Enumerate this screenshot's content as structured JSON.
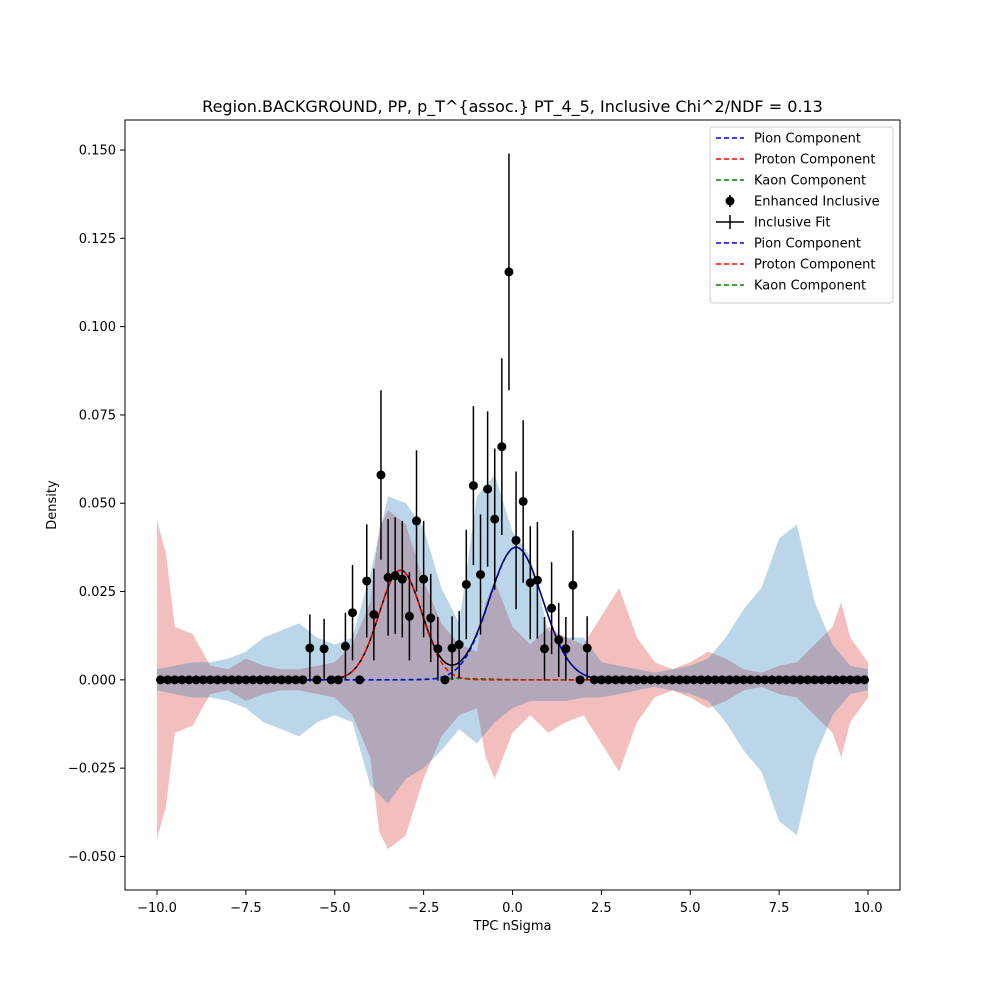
{
  "chart_data": {
    "type": "scatter",
    "title": "Region.BACKGROUND, PP, p_T^{assoc.} PT_4_5, Inclusive Chi^2/NDF = 0.13",
    "xlabel": "TPC nSigma",
    "ylabel": "Density",
    "xlim": [
      -10.9,
      10.9
    ],
    "ylim": [
      -0.0595,
      0.1585
    ],
    "xticks": [
      -10.0,
      -7.5,
      -5.0,
      -2.5,
      0.0,
      2.5,
      5.0,
      7.5,
      10.0
    ],
    "xtick_labels": [
      "−10.0",
      "−7.5",
      "−5.0",
      "−2.5",
      "0.0",
      "2.5",
      "5.0",
      "7.5",
      "10.0"
    ],
    "yticks": [
      -0.05,
      -0.025,
      0.0,
      0.025,
      0.05,
      0.075,
      0.1,
      0.125,
      0.15
    ],
    "ytick_labels": [
      "−0.050",
      "−0.025",
      "0.000",
      "0.025",
      "0.050",
      "0.075",
      "0.100",
      "0.125",
      "0.150"
    ],
    "grid": false,
    "legend_position": "top-right",
    "legend": [
      {
        "label": "Pion Component",
        "style": "dashed",
        "color": "#0000ff"
      },
      {
        "label": "Proton Component",
        "style": "dashed",
        "color": "#ff0000"
      },
      {
        "label": "Kaon Component",
        "style": "dashed",
        "color": "#008000"
      },
      {
        "label": "Enhanced Inclusive",
        "style": "errorbar-marker",
        "color": "#000000"
      },
      {
        "label": "Inclusive Fit",
        "style": "errorbar-line",
        "color": "#000000"
      },
      {
        "label": "Pion Component",
        "style": "dashed",
        "color": "#0000ff"
      },
      {
        "label": "Proton Component",
        "style": "dashed",
        "color": "#ff0000"
      },
      {
        "label": "Kaon Component",
        "style": "dashed",
        "color": "#008000"
      }
    ],
    "colors": {
      "pion": "#0000ff",
      "proton": "#ff0000",
      "kaon": "#008000",
      "data": "#000000",
      "blue_band": "#1f77b4",
      "red_band": "#d62728"
    },
    "fit_components": {
      "pion": {
        "amplitude": 0.0375,
        "mean": 0.1,
        "sigma": 0.75
      },
      "proton": {
        "amplitude": 0.031,
        "mean": -3.15,
        "sigma": 0.6
      },
      "kaon": {
        "amplitude": 0.0004,
        "mean": -1.5,
        "sigma": 0.8
      }
    },
    "bands": {
      "blue": {
        "x": [
          -10,
          -9.5,
          -9,
          -8.5,
          -8,
          -7.5,
          -7,
          -6.5,
          -6,
          -5.5,
          -5,
          -4.5,
          -4,
          -3.5,
          -3,
          -2.5,
          -2,
          -1.5,
          -1,
          -0.5,
          0,
          0.5,
          1,
          1.5,
          2,
          2.5,
          3,
          3.5,
          4,
          4.5,
          5,
          5.5,
          6,
          6.5,
          7,
          7.5,
          8,
          8.5,
          9,
          9.5,
          10
        ],
        "upper": [
          0.003,
          0.004,
          0.005,
          0.005,
          0.006,
          0.008,
          0.012,
          0.014,
          0.016,
          0.012,
          0.01,
          0.012,
          0.03,
          0.052,
          0.05,
          0.043,
          0.026,
          0.016,
          0.052,
          0.058,
          0.042,
          0.035,
          0.014,
          0.012,
          0.012,
          0.005,
          0.004,
          0.003,
          0.002,
          0.003,
          0.004,
          0.006,
          0.012,
          0.02,
          0.026,
          0.04,
          0.044,
          0.022,
          0.01,
          0.004,
          0.003
        ],
        "lower": [
          -0.003,
          -0.004,
          -0.005,
          -0.005,
          -0.006,
          -0.008,
          -0.012,
          -0.014,
          -0.016,
          -0.012,
          -0.01,
          -0.012,
          -0.03,
          -0.035,
          -0.028,
          -0.025,
          -0.02,
          -0.014,
          -0.018,
          -0.012,
          -0.008,
          -0.006,
          -0.006,
          -0.006,
          -0.005,
          -0.005,
          -0.004,
          -0.003,
          -0.002,
          -0.003,
          -0.004,
          -0.006,
          -0.012,
          -0.02,
          -0.026,
          -0.04,
          -0.044,
          -0.022,
          -0.01,
          -0.004,
          -0.003
        ]
      },
      "red": {
        "x": [
          -10,
          -9.75,
          -9.5,
          -9,
          -8.5,
          -8,
          -7.5,
          -7,
          -6.5,
          -6,
          -5.5,
          -5,
          -4.5,
          -4,
          -3.75,
          -3.5,
          -3,
          -2.5,
          -2,
          -1.5,
          -1,
          -0.75,
          -0.5,
          0,
          0.5,
          1,
          1.5,
          2,
          2.5,
          3,
          3.5,
          4,
          4.5,
          5,
          5.5,
          6,
          6.5,
          7,
          7.5,
          8,
          8.5,
          9,
          9.25,
          9.5,
          10
        ],
        "upper": [
          0.045,
          0.036,
          0.015,
          0.013,
          0.004,
          0.003,
          0.006,
          0.004,
          0.003,
          0.003,
          0.004,
          0.005,
          0.01,
          0.022,
          0.043,
          0.048,
          0.044,
          0.028,
          0.016,
          0.01,
          0.008,
          0.022,
          0.028,
          0.015,
          0.01,
          0.015,
          0.012,
          0.01,
          0.018,
          0.026,
          0.012,
          0.005,
          0.003,
          0.005,
          0.008,
          0.006,
          0.003,
          0.002,
          0.004,
          0.005,
          0.01,
          0.015,
          0.022,
          0.012,
          0.005
        ],
        "lower": [
          -0.045,
          -0.036,
          -0.015,
          -0.013,
          -0.004,
          -0.003,
          -0.006,
          -0.004,
          -0.003,
          -0.003,
          -0.004,
          -0.005,
          -0.01,
          -0.022,
          -0.043,
          -0.048,
          -0.044,
          -0.028,
          -0.016,
          -0.01,
          -0.008,
          -0.022,
          -0.028,
          -0.015,
          -0.01,
          -0.015,
          -0.012,
          -0.01,
          -0.018,
          -0.026,
          -0.012,
          -0.005,
          -0.003,
          -0.005,
          -0.008,
          -0.006,
          -0.003,
          -0.002,
          -0.004,
          -0.005,
          -0.01,
          -0.015,
          -0.022,
          -0.012,
          -0.005
        ]
      }
    },
    "points": [
      {
        "x": -9.9,
        "y": 0.0,
        "err": 0.0
      },
      {
        "x": -9.7,
        "y": 0.0,
        "err": 0.0
      },
      {
        "x": -9.5,
        "y": 0.0,
        "err": 0.0
      },
      {
        "x": -9.3,
        "y": 0.0,
        "err": 0.0
      },
      {
        "x": -9.1,
        "y": 0.0,
        "err": 0.0
      },
      {
        "x": -8.9,
        "y": 0.0,
        "err": 0.0
      },
      {
        "x": -8.7,
        "y": 0.0,
        "err": 0.0
      },
      {
        "x": -8.5,
        "y": 0.0,
        "err": 0.0
      },
      {
        "x": -8.3,
        "y": 0.0,
        "err": 0.0
      },
      {
        "x": -8.1,
        "y": 0.0,
        "err": 0.0
      },
      {
        "x": -7.9,
        "y": 0.0,
        "err": 0.0
      },
      {
        "x": -7.7,
        "y": 0.0,
        "err": 0.0
      },
      {
        "x": -7.5,
        "y": 0.0,
        "err": 0.0
      },
      {
        "x": -7.3,
        "y": 0.0,
        "err": 0.0
      },
      {
        "x": -7.1,
        "y": 0.0,
        "err": 0.0
      },
      {
        "x": -6.9,
        "y": 0.0,
        "err": 0.0
      },
      {
        "x": -6.7,
        "y": 0.0,
        "err": 0.0
      },
      {
        "x": -6.5,
        "y": 0.0,
        "err": 0.0
      },
      {
        "x": -6.3,
        "y": 0.0,
        "err": 0.0
      },
      {
        "x": -6.1,
        "y": 0.0,
        "err": 0.0
      },
      {
        "x": -5.9,
        "y": 0.0,
        "err": 0.0
      },
      {
        "x": -5.7,
        "y": 0.009,
        "err": 0.0095
      },
      {
        "x": -5.5,
        "y": 0.0,
        "err": 0.0
      },
      {
        "x": -5.3,
        "y": 0.0088,
        "err": 0.0085
      },
      {
        "x": -5.1,
        "y": 0.0,
        "err": 0.0
      },
      {
        "x": -4.9,
        "y": 0.0,
        "err": 0.0
      },
      {
        "x": -4.7,
        "y": 0.0095,
        "err": 0.0095
      },
      {
        "x": -4.5,
        "y": 0.019,
        "err": 0.0135
      },
      {
        "x": -4.3,
        "y": 0.0,
        "err": 0.0
      },
      {
        "x": -4.1,
        "y": 0.028,
        "err": 0.016
      },
      {
        "x": -3.9,
        "y": 0.0185,
        "err": 0.013
      },
      {
        "x": -3.7,
        "y": 0.058,
        "err": 0.024
      },
      {
        "x": -3.5,
        "y": 0.029,
        "err": 0.0165
      },
      {
        "x": -3.3,
        "y": 0.0295,
        "err": 0.0165
      },
      {
        "x": -3.1,
        "y": 0.0285,
        "err": 0.0165
      },
      {
        "x": -2.9,
        "y": 0.018,
        "err": 0.0125
      },
      {
        "x": -2.7,
        "y": 0.045,
        "err": 0.02
      },
      {
        "x": -2.5,
        "y": 0.0285,
        "err": 0.0165
      },
      {
        "x": -2.3,
        "y": 0.0175,
        "err": 0.0125
      },
      {
        "x": -2.1,
        "y": 0.0088,
        "err": 0.009
      },
      {
        "x": -1.9,
        "y": 0.0,
        "err": 0.0
      },
      {
        "x": -1.7,
        "y": 0.009,
        "err": 0.009
      },
      {
        "x": -1.5,
        "y": 0.01,
        "err": 0.0095
      },
      {
        "x": -1.3,
        "y": 0.027,
        "err": 0.0155
      },
      {
        "x": -1.1,
        "y": 0.055,
        "err": 0.0225
      },
      {
        "x": -0.9,
        "y": 0.0298,
        "err": 0.017
      },
      {
        "x": -0.7,
        "y": 0.054,
        "err": 0.022
      },
      {
        "x": -0.5,
        "y": 0.0455,
        "err": 0.02
      },
      {
        "x": -0.3,
        "y": 0.066,
        "err": 0.025
      },
      {
        "x": -0.1,
        "y": 0.1155,
        "err": 0.0335
      },
      {
        "x": 0.1,
        "y": 0.0395,
        "err": 0.0195
      },
      {
        "x": 0.3,
        "y": 0.0505,
        "err": 0.023
      },
      {
        "x": 0.5,
        "y": 0.0275,
        "err": 0.016
      },
      {
        "x": 0.7,
        "y": 0.0282,
        "err": 0.0165
      },
      {
        "x": 0.9,
        "y": 0.0088,
        "err": 0.009
      },
      {
        "x": 1.1,
        "y": 0.0203,
        "err": 0.013
      },
      {
        "x": 1.3,
        "y": 0.0113,
        "err": 0.0105
      },
      {
        "x": 1.5,
        "y": 0.0088,
        "err": 0.009
      },
      {
        "x": 1.7,
        "y": 0.0268,
        "err": 0.0155
      },
      {
        "x": 1.9,
        "y": 0.0,
        "err": 0.0
      },
      {
        "x": 2.1,
        "y": 0.009,
        "err": 0.009
      },
      {
        "x": 2.3,
        "y": 0.0,
        "err": 0.0
      },
      {
        "x": 2.5,
        "y": 0.0,
        "err": 0.0
      },
      {
        "x": 2.7,
        "y": 0.0,
        "err": 0.0
      },
      {
        "x": 2.9,
        "y": 0.0,
        "err": 0.0
      },
      {
        "x": 3.1,
        "y": 0.0,
        "err": 0.0
      },
      {
        "x": 3.3,
        "y": 0.0,
        "err": 0.0
      },
      {
        "x": 3.5,
        "y": 0.0,
        "err": 0.0
      },
      {
        "x": 3.7,
        "y": 0.0,
        "err": 0.0
      },
      {
        "x": 3.9,
        "y": 0.0,
        "err": 0.0
      },
      {
        "x": 4.1,
        "y": 0.0,
        "err": 0.0
      },
      {
        "x": 4.3,
        "y": 0.0,
        "err": 0.0
      },
      {
        "x": 4.5,
        "y": 0.0,
        "err": 0.0
      },
      {
        "x": 4.7,
        "y": 0.0,
        "err": 0.0
      },
      {
        "x": 4.9,
        "y": 0.0,
        "err": 0.0
      },
      {
        "x": 5.1,
        "y": 0.0,
        "err": 0.0
      },
      {
        "x": 5.3,
        "y": 0.0,
        "err": 0.0
      },
      {
        "x": 5.5,
        "y": 0.0,
        "err": 0.0
      },
      {
        "x": 5.7,
        "y": 0.0,
        "err": 0.0
      },
      {
        "x": 5.9,
        "y": 0.0,
        "err": 0.0
      },
      {
        "x": 6.1,
        "y": 0.0,
        "err": 0.0
      },
      {
        "x": 6.3,
        "y": 0.0,
        "err": 0.0
      },
      {
        "x": 6.5,
        "y": 0.0,
        "err": 0.0
      },
      {
        "x": 6.7,
        "y": 0.0,
        "err": 0.0
      },
      {
        "x": 6.9,
        "y": 0.0,
        "err": 0.0
      },
      {
        "x": 7.1,
        "y": 0.0,
        "err": 0.0
      },
      {
        "x": 7.3,
        "y": 0.0,
        "err": 0.0
      },
      {
        "x": 7.5,
        "y": 0.0,
        "err": 0.0
      },
      {
        "x": 7.7,
        "y": 0.0,
        "err": 0.0
      },
      {
        "x": 7.9,
        "y": 0.0,
        "err": 0.0
      },
      {
        "x": 8.1,
        "y": 0.0,
        "err": 0.0
      },
      {
        "x": 8.3,
        "y": 0.0,
        "err": 0.0
      },
      {
        "x": 8.5,
        "y": 0.0,
        "err": 0.0
      },
      {
        "x": 8.7,
        "y": 0.0,
        "err": 0.0
      },
      {
        "x": 8.9,
        "y": 0.0,
        "err": 0.0
      },
      {
        "x": 9.1,
        "y": 0.0,
        "err": 0.0
      },
      {
        "x": 9.3,
        "y": 0.0,
        "err": 0.0
      },
      {
        "x": 9.5,
        "y": 0.0,
        "err": 0.0
      },
      {
        "x": 9.7,
        "y": 0.0,
        "err": 0.0
      },
      {
        "x": 9.9,
        "y": 0.0,
        "err": 0.0
      }
    ]
  }
}
